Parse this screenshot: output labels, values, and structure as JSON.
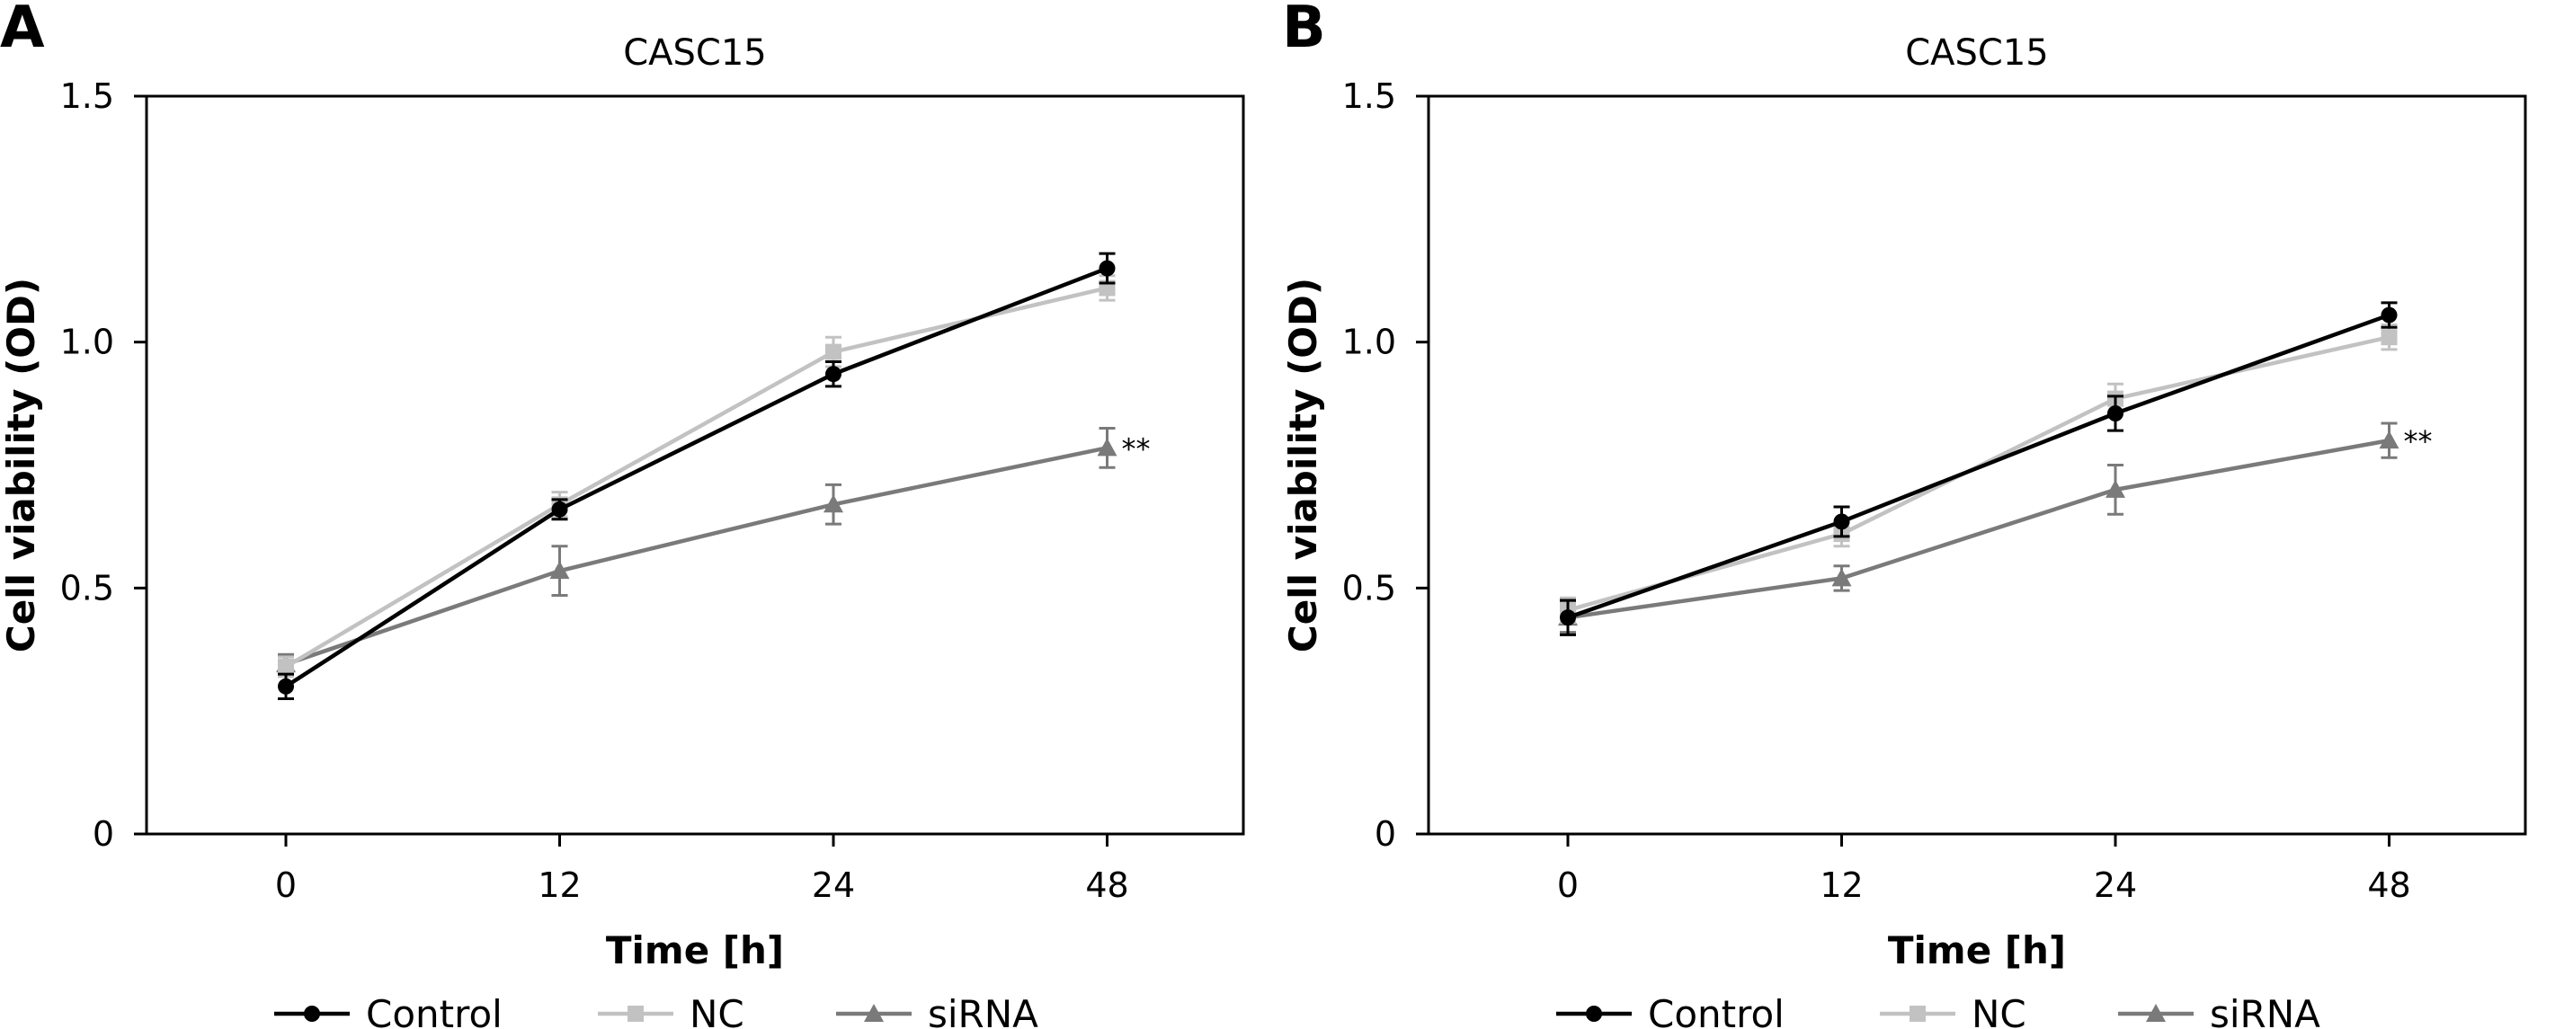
{
  "colors": {
    "Control": "#000000",
    "NC": "#c2c2c2",
    "siRNA": "#7a7a7a",
    "axis": "#000000"
  },
  "legend": [
    {
      "series": "Control",
      "label": "Control",
      "marker": "circle"
    },
    {
      "series": "NC",
      "label": "NC",
      "marker": "square"
    },
    {
      "series": "siRNA",
      "label": "siRNA",
      "marker": "triangle"
    }
  ],
  "chart_data": [
    {
      "panel_label": "A",
      "type": "line",
      "title": "CASC15",
      "xlabel": "Time [h]",
      "ylabel": "Cell viability (OD)",
      "x": [
        0,
        12,
        24,
        48
      ],
      "x_ticks": [
        "0",
        "12",
        "24",
        "48"
      ],
      "y_ticks": [
        "0",
        "0.5",
        "1.0",
        "1.5"
      ],
      "ylim": [
        0,
        1.5
      ],
      "grid": false,
      "legend_position": "bottom",
      "series": [
        {
          "name": "Control",
          "marker": "circle",
          "values": [
            0.3,
            0.66,
            0.935,
            1.15
          ],
          "errors": [
            0.025,
            0.02,
            0.025,
            0.03
          ]
        },
        {
          "name": "NC",
          "marker": "square",
          "values": [
            0.34,
            0.67,
            0.98,
            1.11
          ],
          "errors": [
            0.02,
            0.025,
            0.03,
            0.025
          ]
        },
        {
          "name": "siRNA",
          "marker": "triangle",
          "values": [
            0.345,
            0.535,
            0.67,
            0.785
          ],
          "errors": [
            0.02,
            0.05,
            0.04,
            0.04
          ]
        }
      ],
      "annotations": [
        {
          "series": "siRNA",
          "x": 48,
          "text": "**"
        }
      ]
    },
    {
      "panel_label": "B",
      "type": "line",
      "title": "CASC15",
      "xlabel": "Time [h]",
      "ylabel": "Cell viability (OD)",
      "x": [
        0,
        12,
        24,
        48
      ],
      "x_ticks": [
        "0",
        "12",
        "24",
        "48"
      ],
      "y_ticks": [
        "0",
        "0.5",
        "1.0",
        "1.5"
      ],
      "ylim": [
        0,
        1.5
      ],
      "grid": false,
      "legend_position": "bottom",
      "series": [
        {
          "name": "Control",
          "marker": "circle",
          "values": [
            0.44,
            0.635,
            0.855,
            1.055
          ],
          "errors": [
            0.035,
            0.03,
            0.035,
            0.025
          ]
        },
        {
          "name": "NC",
          "marker": "square",
          "values": [
            0.455,
            0.61,
            0.885,
            1.01
          ],
          "errors": [
            0.025,
            0.025,
            0.03,
            0.025
          ]
        },
        {
          "name": "siRNA",
          "marker": "triangle",
          "values": [
            0.44,
            0.52,
            0.7,
            0.8
          ],
          "errors": [
            0.03,
            0.025,
            0.05,
            0.035
          ]
        }
      ],
      "annotations": [
        {
          "series": "siRNA",
          "x": 48,
          "text": "**"
        }
      ]
    }
  ]
}
